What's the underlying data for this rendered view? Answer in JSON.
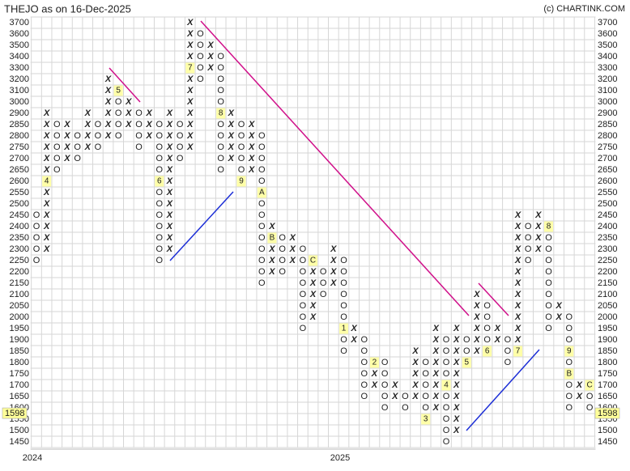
{
  "chart_data": {
    "type": "pointfigure",
    "title": "THEJO as on 16-Dec-2025",
    "credit": "(c) CHARTINK.COM",
    "yticks": [
      3700,
      3600,
      3500,
      3400,
      3300,
      3200,
      3100,
      3000,
      2900,
      2850,
      2800,
      2750,
      2700,
      2650,
      2600,
      2550,
      2500,
      2450,
      2400,
      2350,
      2300,
      2250,
      2200,
      2150,
      2100,
      2050,
      2000,
      1950,
      1900,
      1850,
      1800,
      1750,
      1700,
      1650,
      1600,
      1550,
      1500,
      1450
    ],
    "last_price": 1598,
    "year_labels": [
      "2024",
      "2025"
    ],
    "x_color": "#3a963a",
    "o_color": "#e8453c",
    "grid": true,
    "columns": [
      {
        "symbol": "O",
        "from": 2450,
        "to": 2250
      },
      {
        "symbol": "X",
        "from": 2300,
        "to": 2900,
        "markers": [
          {
            "label": "4",
            "price": 2600
          }
        ]
      },
      {
        "symbol": "O",
        "from": 2850,
        "to": 2650
      },
      {
        "symbol": "X",
        "from": 2700,
        "to": 2850
      },
      {
        "symbol": "O",
        "from": 2800,
        "to": 2700
      },
      {
        "symbol": "X",
        "from": 2750,
        "to": 2900
      },
      {
        "symbol": "O",
        "from": 2850,
        "to": 2750
      },
      {
        "symbol": "X",
        "from": 2800,
        "to": 3200
      },
      {
        "symbol": "O",
        "from": 3100,
        "to": 2800,
        "markers": [
          {
            "label": "5",
            "price": 3100
          }
        ]
      },
      {
        "symbol": "X",
        "from": 2850,
        "to": 3000
      },
      {
        "symbol": "O",
        "from": 2900,
        "to": 2750
      },
      {
        "symbol": "X",
        "from": 2800,
        "to": 2900
      },
      {
        "symbol": "O",
        "from": 2850,
        "to": 2250,
        "markers": [
          {
            "label": "6",
            "price": 2600
          }
        ]
      },
      {
        "symbol": "X",
        "from": 2300,
        "to": 2900
      },
      {
        "symbol": "O",
        "from": 2850,
        "to": 2700
      },
      {
        "symbol": "X",
        "from": 2750,
        "to": 3700,
        "markers": [
          {
            "label": "7",
            "price": 3300
          }
        ]
      },
      {
        "symbol": "O",
        "from": 3600,
        "to": 3200
      },
      {
        "symbol": "X",
        "from": 3300,
        "to": 3500
      },
      {
        "symbol": "O",
        "from": 3400,
        "to": 2650,
        "markers": [
          {
            "label": "8",
            "price": 2900
          }
        ]
      },
      {
        "symbol": "X",
        "from": 2700,
        "to": 2900
      },
      {
        "symbol": "O",
        "from": 2850,
        "to": 2600,
        "markers": [
          {
            "label": "9",
            "price": 2600
          }
        ]
      },
      {
        "symbol": "X",
        "from": 2650,
        "to": 2850
      },
      {
        "symbol": "O",
        "from": 2800,
        "to": 2150,
        "markers": [
          {
            "label": "A",
            "price": 2550
          }
        ]
      },
      {
        "symbol": "X",
        "from": 2200,
        "to": 2400,
        "markers": [
          {
            "label": "B",
            "price": 2350
          }
        ]
      },
      {
        "symbol": "O",
        "from": 2350,
        "to": 2200
      },
      {
        "symbol": "X",
        "from": 2250,
        "to": 2350
      },
      {
        "symbol": "O",
        "from": 2300,
        "to": 1950
      },
      {
        "symbol": "X",
        "from": 2000,
        "to": 2250,
        "markers": [
          {
            "label": "C",
            "price": 2250
          }
        ]
      },
      {
        "symbol": "O",
        "from": 2200,
        "to": 2100
      },
      {
        "symbol": "X",
        "from": 2150,
        "to": 2300
      },
      {
        "symbol": "O",
        "from": 2250,
        "to": 1850,
        "markers": [
          {
            "label": "1",
            "price": 1950
          }
        ]
      },
      {
        "symbol": "X",
        "from": 1900,
        "to": 1950
      },
      {
        "symbol": "O",
        "from": 1900,
        "to": 1650
      },
      {
        "symbol": "X",
        "from": 1700,
        "to": 1800,
        "markers": [
          {
            "label": "2",
            "price": 1800
          }
        ]
      },
      {
        "symbol": "O",
        "from": 1800,
        "to": 1600
      },
      {
        "symbol": "X",
        "from": 1650,
        "to": 1700
      },
      {
        "symbol": "O",
        "from": 1650,
        "to": 1600
      },
      {
        "symbol": "X",
        "from": 1650,
        "to": 1850
      },
      {
        "symbol": "O",
        "from": 1800,
        "to": 1550,
        "markers": [
          {
            "label": "3",
            "price": 1550
          }
        ]
      },
      {
        "symbol": "X",
        "from": 1600,
        "to": 1950
      },
      {
        "symbol": "O",
        "from": 1900,
        "to": 1450,
        "markers": [
          {
            "label": "4",
            "price": 1700
          }
        ]
      },
      {
        "symbol": "X",
        "from": 1500,
        "to": 1950
      },
      {
        "symbol": "O",
        "from": 1900,
        "to": 1800,
        "markers": [
          {
            "label": "5",
            "price": 1800
          }
        ]
      },
      {
        "symbol": "X",
        "from": 1850,
        "to": 2100
      },
      {
        "symbol": "O",
        "from": 2050,
        "to": 1850,
        "markers": [
          {
            "label": "6",
            "price": 1850
          }
        ]
      },
      {
        "symbol": "X",
        "from": 1900,
        "to": 1950
      },
      {
        "symbol": "O",
        "from": 1900,
        "to": 1800
      },
      {
        "symbol": "X",
        "from": 1850,
        "to": 2450,
        "markers": [
          {
            "label": "7",
            "price": 1850
          }
        ]
      },
      {
        "symbol": "O",
        "from": 2400,
        "to": 2250
      },
      {
        "symbol": "X",
        "from": 2300,
        "to": 2450
      },
      {
        "symbol": "O",
        "from": 2400,
        "to": 1950,
        "markers": [
          {
            "label": "8",
            "price": 2400
          }
        ]
      },
      {
        "symbol": "X",
        "from": 2000,
        "to": 2050
      },
      {
        "symbol": "O",
        "from": 2000,
        "to": 1600,
        "markers": [
          {
            "label": "9",
            "price": 1850
          },
          {
            "label": "B",
            "price": 1750
          }
        ]
      },
      {
        "symbol": "X",
        "from": 1650,
        "to": 1700
      },
      {
        "symbol": "O",
        "from": 1700,
        "to": 1600,
        "markers": [
          {
            "label": "C",
            "price": 1700
          }
        ]
      }
    ]
  }
}
